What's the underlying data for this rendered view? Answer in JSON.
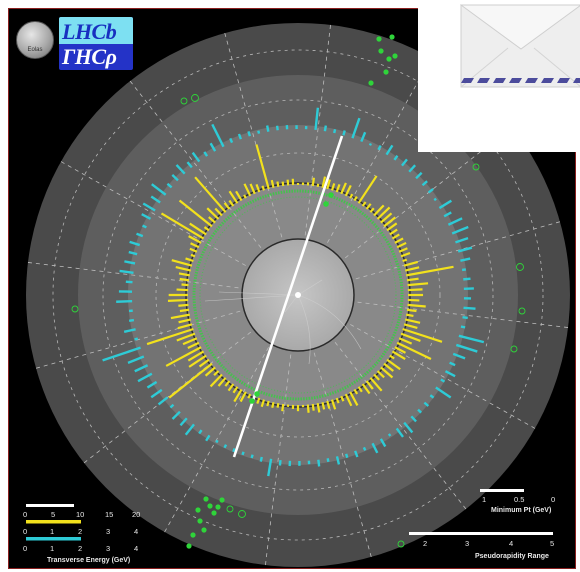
{
  "logo": {
    "line1": "LHCb",
    "line2": "ΓHCρ",
    "coin_text": "Eolas"
  },
  "overlay": {
    "icon": "mail-envelope-icon"
  },
  "legend_left": {
    "scale1_ticks": [
      "0",
      "5",
      "10",
      "15",
      "20"
    ],
    "scale2_ticks": [
      "0",
      "1",
      "2",
      "3",
      "4"
    ],
    "scale3_ticks": [
      "0",
      "1",
      "2",
      "3",
      "4"
    ],
    "title": "Transverse Energy (GeV)"
  },
  "legend_right": {
    "pt_ticks": [
      "1",
      "0.5",
      "0"
    ],
    "pt_title": "Minimum Pt (GeV)",
    "eta_ticks": [
      "2",
      "3",
      "4",
      "5"
    ],
    "eta_title": "Pseudorapidity Range"
  },
  "colors": {
    "yellow": "#f2e11c",
    "cyan": "#2ecbd6",
    "green": "#2fd43a",
    "track": "#ffffff",
    "frame": "#8a1f1f"
  }
}
